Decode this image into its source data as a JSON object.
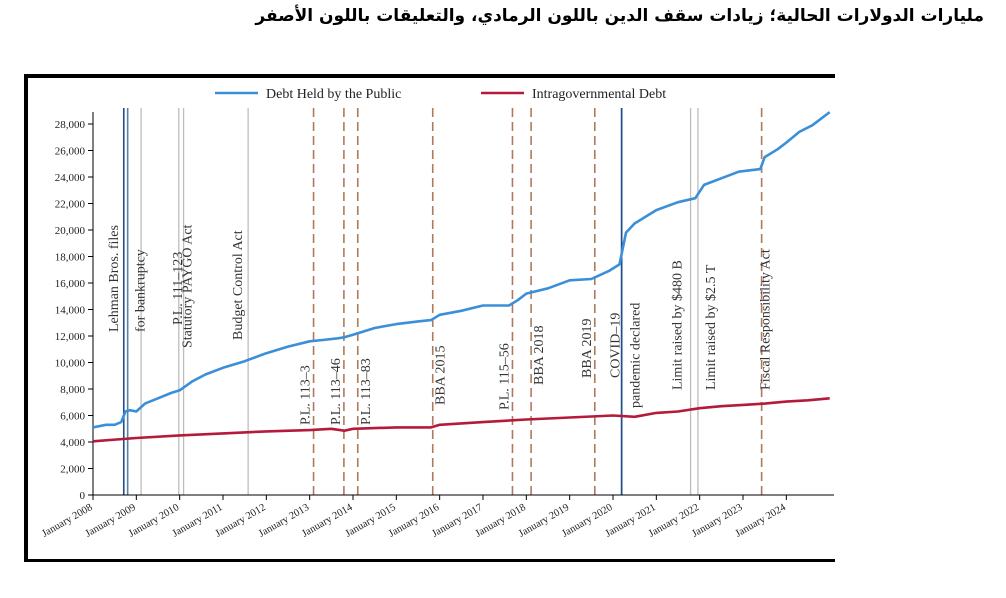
{
  "page": {
    "title": "مليارات الدولارات الحالية؛ زيادات سقف الدين باللون الرمادي، والتعليقات باللون الأصفر"
  },
  "chart_data": {
    "type": "line",
    "title": "",
    "xlabel": "",
    "ylabel": "",
    "ylim": [
      0,
      29000
    ],
    "yticks": [
      0,
      2000,
      4000,
      6000,
      8000,
      10000,
      12000,
      14000,
      16000,
      18000,
      20000,
      22000,
      24000,
      26000,
      28000
    ],
    "ytick_labels": [
      "0",
      "2,000",
      "4,000",
      "6,000",
      "8,000",
      "10,000",
      "12,000",
      "14,000",
      "16,000",
      "18,000",
      "20,000",
      "22,000",
      "24,000",
      "26,000",
      "28,000"
    ],
    "xlim": [
      2008.0,
      2025.1
    ],
    "xticks": [
      2008,
      2009,
      2010,
      2011,
      2012,
      2013,
      2014,
      2015,
      2016,
      2017,
      2018,
      2019,
      2020,
      2021,
      2022,
      2023,
      2024
    ],
    "xtick_labels": [
      "January 2008",
      "January 2009",
      "January 2010",
      "January 2011",
      "January 2012",
      "January 2013",
      "January 2014",
      "January 2015",
      "January 2016",
      "January 2017",
      "January 2018",
      "January 2019",
      "January 2020",
      "January 2021",
      "January 2022",
      "January 2023",
      "January 2024"
    ],
    "legend_position": "top-center",
    "grid": false,
    "series": [
      {
        "name": "Debt Held by the Public",
        "color": "#3a8fd8",
        "x": [
          2008.0,
          2008.3,
          2008.5,
          2008.65,
          2008.75,
          2008.85,
          2009.0,
          2009.2,
          2009.5,
          2009.8,
          2010.0,
          2010.3,
          2010.6,
          2011.0,
          2011.5,
          2012.0,
          2012.5,
          2013.0,
          2013.3,
          2013.6,
          2013.8,
          2014.0,
          2014.5,
          2015.0,
          2015.5,
          2015.8,
          2016.0,
          2016.5,
          2017.0,
          2017.6,
          2017.8,
          2018.0,
          2018.5,
          2019.0,
          2019.5,
          2019.9,
          2020.15,
          2020.3,
          2020.5,
          2020.7,
          2021.0,
          2021.5,
          2021.9,
          2022.1,
          2022.5,
          2022.9,
          2023.4,
          2023.5,
          2023.8,
          2024.0,
          2024.3,
          2024.6,
          2025.0
        ],
        "y": [
          5100,
          5300,
          5300,
          5500,
          6300,
          6400,
          6300,
          6900,
          7300,
          7700,
          7900,
          8600,
          9100,
          9600,
          10100,
          10700,
          11200,
          11600,
          11700,
          11800,
          11900,
          12100,
          12600,
          12900,
          13100,
          13200,
          13600,
          13900,
          14300,
          14300,
          14700,
          15200,
          15600,
          16200,
          16300,
          16900,
          17400,
          19800,
          20500,
          20900,
          21500,
          22100,
          22400,
          23400,
          23900,
          24400,
          24600,
          25500,
          26100,
          26600,
          27400,
          27900,
          28900
        ]
      },
      {
        "name": "Intragovernmental Debt",
        "color": "#b51a3a",
        "x": [
          2008.0,
          2009.0,
          2010.0,
          2011.0,
          2012.0,
          2013.0,
          2013.5,
          2013.8,
          2014.0,
          2015.0,
          2015.8,
          2016.0,
          2017.0,
          2018.0,
          2019.0,
          2020.0,
          2020.5,
          2021.0,
          2021.5,
          2022.0,
          2022.5,
          2023.0,
          2023.5,
          2024.0,
          2024.5,
          2025.0
        ],
        "y": [
          4050,
          4300,
          4500,
          4650,
          4800,
          4900,
          5000,
          4850,
          5000,
          5100,
          5100,
          5300,
          5500,
          5700,
          5850,
          6000,
          5900,
          6200,
          6300,
          6550,
          6700,
          6800,
          6900,
          7050,
          7150,
          7300
        ]
      }
    ],
    "annotations": [
      {
        "x": 2008.71,
        "label": "Lehman Bros. files",
        "category": "event",
        "line_color": "#1f4e8c"
      },
      {
        "x": 2008.8,
        "label": "for bankruptcy",
        "category": "event",
        "line_color": "#5a7fa0"
      },
      {
        "x": 2009.11,
        "label": "",
        "category": "debt-limit increase",
        "line_color": "#bdbdbd"
      },
      {
        "x": 2009.98,
        "label": "P.L. 111–123",
        "category": "debt-limit increase",
        "line_color": "#bdbdbd"
      },
      {
        "x": 2010.09,
        "label": "Statutory PAYGO Act",
        "category": "debt-limit increase",
        "line_color": "#bdbdbd"
      },
      {
        "x": 2011.58,
        "label": "Budget Control Act",
        "category": "debt-limit increase",
        "line_color": "#bdbdbd"
      },
      {
        "x": 2013.09,
        "label": "P.L. 113–3",
        "category": "suspension",
        "line_color": "#b07a5a"
      },
      {
        "x": 2013.79,
        "label": "P.L. 113–46",
        "category": "suspension",
        "line_color": "#b07a5a"
      },
      {
        "x": 2014.11,
        "label": "P.L. 113–83",
        "category": "suspension",
        "line_color": "#b07a5a"
      },
      {
        "x": 2015.84,
        "label": "BBA 2015",
        "category": "suspension",
        "line_color": "#b07a5a"
      },
      {
        "x": 2017.68,
        "label": "P.L. 115–56",
        "category": "suspension",
        "line_color": "#b07a5a"
      },
      {
        "x": 2018.11,
        "label": "BBA 2018",
        "category": "suspension",
        "line_color": "#b07a5a"
      },
      {
        "x": 2019.58,
        "label": "BBA 2019",
        "category": "suspension",
        "line_color": "#b07a5a"
      },
      {
        "x": 2020.2,
        "label": "COVID–19",
        "category": "event",
        "line_color": "#1f4e8c"
      },
      {
        "x": 2020.2,
        "label": "pandemic declared",
        "category": "event",
        "line_color": "#1f4e8c"
      },
      {
        "x": 2021.79,
        "label": "Limit raised by $480 B",
        "category": "debt-limit increase",
        "line_color": "#bdbdbd"
      },
      {
        "x": 2021.96,
        "label": "Limit raised by $2.5 T",
        "category": "debt-limit increase",
        "line_color": "#bdbdbd"
      },
      {
        "x": 2023.43,
        "label": "Fiscal Responsibility Act",
        "category": "suspension",
        "line_color": "#b07a5a"
      }
    ]
  }
}
